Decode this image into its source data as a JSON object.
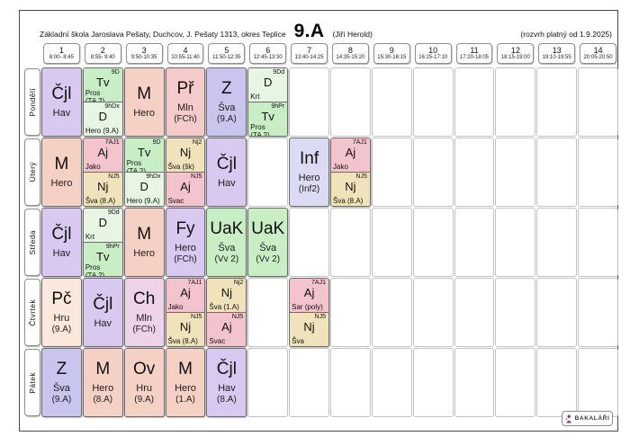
{
  "header": {
    "school": "Základní škola Jaroslava Pešaty, Duchcov, J. Pešaty 1313, okres Teplice",
    "class_name": "9.A",
    "class_teacher": "(Jiří Herold)",
    "validity": "(rozvrh platný od 1.9.2025)"
  },
  "palette": {
    "purple": "#d9c9f0",
    "periwinkle": "#c9c5ef",
    "salmon": "#f5d0c5",
    "rose": "#f4caca",
    "green": "#c9eec5",
    "light_green": "#e6f6e2",
    "pink": "#f3c3ce",
    "tan": "#f0e3bb",
    "lavender": "#dbdbf3",
    "peach": "#fbe7db",
    "lilac": "#edd2ea"
  },
  "periods": [
    {
      "num": "1",
      "time": "8:00- 8:45"
    },
    {
      "num": "2",
      "time": "8:55- 9:40"
    },
    {
      "num": "3",
      "time": "9:50-10:35"
    },
    {
      "num": "4",
      "time": "10:55-11:40"
    },
    {
      "num": "5",
      "time": "11:50-12:35"
    },
    {
      "num": "6",
      "time": "12:45-13:30"
    },
    {
      "num": "7",
      "time": "13:40-14:25"
    },
    {
      "num": "8",
      "time": "14:35-15:20"
    },
    {
      "num": "9",
      "time": "15:30-16:15"
    },
    {
      "num": "10",
      "time": "16:25-17:10"
    },
    {
      "num": "11",
      "time": "17:20-18:05"
    },
    {
      "num": "12",
      "time": "18:15-19:00"
    },
    {
      "num": "13",
      "time": "19:10-19:55"
    },
    {
      "num": "14",
      "time": "20:05-20:50"
    }
  ],
  "days": [
    {
      "label": "Pondělí",
      "lessons": {
        "1": {
          "type": "full",
          "subject": "Čjl",
          "teacher": "Hav",
          "room": "",
          "color": "purple"
        },
        "2": {
          "type": "split",
          "parts": [
            {
              "tag": "9D",
              "subject": "Tv",
              "detail": "Pros (Tě.2)",
              "color": "green"
            },
            {
              "tag": "9hDx",
              "subject": "D",
              "detail": "Hero (9.A)",
              "color": "light_green"
            }
          ]
        },
        "3": {
          "type": "full",
          "subject": "M",
          "teacher": "Hero",
          "room": "",
          "color": "salmon"
        },
        "4": {
          "type": "full",
          "subject": "Př",
          "teacher": "Mln",
          "room": "(FCh)",
          "color": "rose"
        },
        "5": {
          "type": "full",
          "subject": "Z",
          "teacher": "Šva",
          "room": "(9.A)",
          "color": "periwinkle"
        },
        "6": {
          "type": "split",
          "parts": [
            {
              "tag": "9Dd",
              "subject": "D",
              "detail": "Krt",
              "color": "light_green"
            },
            {
              "tag": "9hPr",
              "subject": "Tv",
              "detail": "Pros (Tě.2)",
              "color": "green"
            }
          ]
        }
      }
    },
    {
      "label": "Úterý",
      "lessons": {
        "1": {
          "type": "full",
          "subject": "M",
          "teacher": "Hero",
          "room": "",
          "color": "salmon"
        },
        "2": {
          "type": "split",
          "parts": [
            {
              "tag": "7AJ1",
              "subject": "Aj",
              "detail": "Jako",
              "color": "pink"
            },
            {
              "tag": "NJ5",
              "subject": "Nj",
              "detail": "Šva (8.A)",
              "color": "tan"
            }
          ]
        },
        "3": {
          "type": "split",
          "parts": [
            {
              "tag": "9D",
              "subject": "Tv",
              "detail": "Pros (Tě.2)",
              "color": "green"
            },
            {
              "tag": "9hDx",
              "subject": "D",
              "detail": "Hero (9.A)",
              "color": "light_green"
            }
          ]
        },
        "4": {
          "type": "split",
          "parts": [
            {
              "tag": "Nj2",
              "subject": "Nj",
              "detail": "Šva (šk)",
              "color": "tan"
            },
            {
              "tag": "NJ5",
              "subject": "Aj",
              "detail": "Svac",
              "color": "pink"
            }
          ]
        },
        "5": {
          "type": "full",
          "subject": "Čjl",
          "teacher": "Hav",
          "room": "",
          "color": "purple"
        },
        "7": {
          "type": "full",
          "subject": "Inf",
          "teacher": "Hero",
          "room": "(Inf2)",
          "color": "lavender"
        },
        "8": {
          "type": "split",
          "parts": [
            {
              "tag": "7AJ1",
              "subject": "Aj",
              "detail": "Jako",
              "color": "pink"
            },
            {
              "tag": "NJ5",
              "subject": "Nj",
              "detail": "Šva (8.A)",
              "color": "tan"
            }
          ]
        }
      }
    },
    {
      "label": "Středa",
      "lessons": {
        "1": {
          "type": "full",
          "subject": "Čjl",
          "teacher": "Hav",
          "room": "",
          "color": "purple"
        },
        "2": {
          "type": "split",
          "parts": [
            {
              "tag": "9Dd",
              "subject": "D",
              "detail": "Krt",
              "color": "light_green"
            },
            {
              "tag": "9hPr",
              "subject": "Tv",
              "detail": "Pros (Tě.2)",
              "color": "green"
            }
          ]
        },
        "3": {
          "type": "full",
          "subject": "M",
          "teacher": "Hero",
          "room": "",
          "color": "salmon"
        },
        "4": {
          "type": "full",
          "subject": "Fy",
          "teacher": "Hero",
          "room": "(FCh)",
          "color": "purple"
        },
        "5": {
          "type": "full",
          "subject": "UaK",
          "teacher": "Šva",
          "room": "(Vv 2)",
          "color": "green"
        },
        "6": {
          "type": "full",
          "subject": "UaK",
          "teacher": "Šva",
          "room": "(Vv 2)",
          "color": "green"
        }
      }
    },
    {
      "label": "Čtvrtek",
      "lessons": {
        "1": {
          "type": "full",
          "subject": "Pč",
          "teacher": "Hru",
          "room": "(9.A)",
          "color": "peach"
        },
        "2": {
          "type": "full",
          "subject": "Čjl",
          "teacher": "Hav",
          "room": "",
          "color": "purple"
        },
        "3": {
          "type": "full",
          "subject": "Ch",
          "teacher": "Mln",
          "room": "(FCh)",
          "color": "lilac"
        },
        "4": {
          "type": "split",
          "parts": [
            {
              "tag": "7AJ1",
              "subject": "Aj",
              "detail": "Jako",
              "color": "pink"
            },
            {
              "tag": "NJ5",
              "subject": "Nj",
              "detail": "Šva (8.A)",
              "color": "tan"
            }
          ]
        },
        "5": {
          "type": "split",
          "parts": [
            {
              "tag": "Nj2",
              "subject": "Nj",
              "detail": "Šva (1.A)",
              "color": "tan"
            },
            {
              "tag": "NJ5",
              "subject": "Aj",
              "detail": "Svac",
              "color": "pink"
            }
          ]
        },
        "7": {
          "type": "split",
          "parts": [
            {
              "tag": "7AJ1",
              "subject": "Aj",
              "detail": "Sar (poly)",
              "color": "pink"
            },
            {
              "tag": "NJ5",
              "subject": "Nj",
              "detail": "Šva",
              "color": "tan"
            }
          ]
        }
      }
    },
    {
      "label": "Pátek",
      "lessons": {
        "1": {
          "type": "full",
          "subject": "Z",
          "teacher": "Šva",
          "room": "(9.A)",
          "color": "periwinkle"
        },
        "2": {
          "type": "full",
          "subject": "M",
          "teacher": "Hero",
          "room": "(8.A)",
          "color": "salmon"
        },
        "3": {
          "type": "full",
          "subject": "Ov",
          "teacher": "Hru",
          "room": "(9.A)",
          "color": "salmon"
        },
        "4": {
          "type": "full",
          "subject": "M",
          "teacher": "Hero",
          "room": "(1.A)",
          "color": "salmon"
        },
        "5": {
          "type": "full",
          "subject": "Čjl",
          "teacher": "Hav",
          "room": "(8.A)",
          "color": "purple"
        }
      }
    }
  ],
  "footer": {
    "logo": "BAKALÁŘI"
  }
}
